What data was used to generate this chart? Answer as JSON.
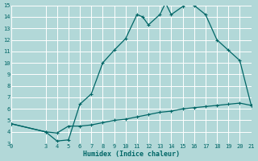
{
  "xlabel": "Humidex (Indice chaleur)",
  "background_color": "#b2d8d8",
  "grid_color": "#c8e8e8",
  "line_color": "#006666",
  "x_min": 0,
  "x_max": 21,
  "y_min": 3,
  "y_max": 15,
  "x_ticks": [
    0,
    3,
    4,
    5,
    6,
    7,
    8,
    9,
    10,
    11,
    12,
    13,
    14,
    15,
    16,
    17,
    18,
    19,
    20,
    21
  ],
  "y_ticks": [
    3,
    4,
    5,
    6,
    7,
    8,
    9,
    10,
    11,
    12,
    13,
    14,
    15
  ],
  "curve1_x": [
    0,
    3,
    4,
    5,
    6,
    7,
    8,
    9,
    10,
    11,
    11.5,
    12,
    13,
    13.5,
    14,
    15,
    15.5,
    16,
    17,
    18,
    19,
    20,
    21
  ],
  "curve1_y": [
    4.7,
    4.0,
    3.2,
    3.3,
    6.4,
    7.3,
    10.0,
    11.1,
    12.1,
    14.2,
    14.0,
    13.3,
    14.2,
    15.2,
    14.2,
    14.9,
    15.2,
    15.0,
    14.2,
    12.0,
    11.1,
    10.2,
    6.3
  ],
  "curve2_x": [
    0,
    3,
    4,
    5,
    6,
    7,
    8,
    9,
    10,
    11,
    12,
    13,
    14,
    15,
    16,
    17,
    18,
    19,
    20,
    21
  ],
  "curve2_y": [
    4.7,
    4.0,
    3.9,
    4.5,
    4.5,
    4.6,
    4.8,
    5.0,
    5.1,
    5.3,
    5.5,
    5.7,
    5.8,
    6.0,
    6.1,
    6.2,
    6.3,
    6.4,
    6.5,
    6.3
  ],
  "marker_size": 2.5
}
